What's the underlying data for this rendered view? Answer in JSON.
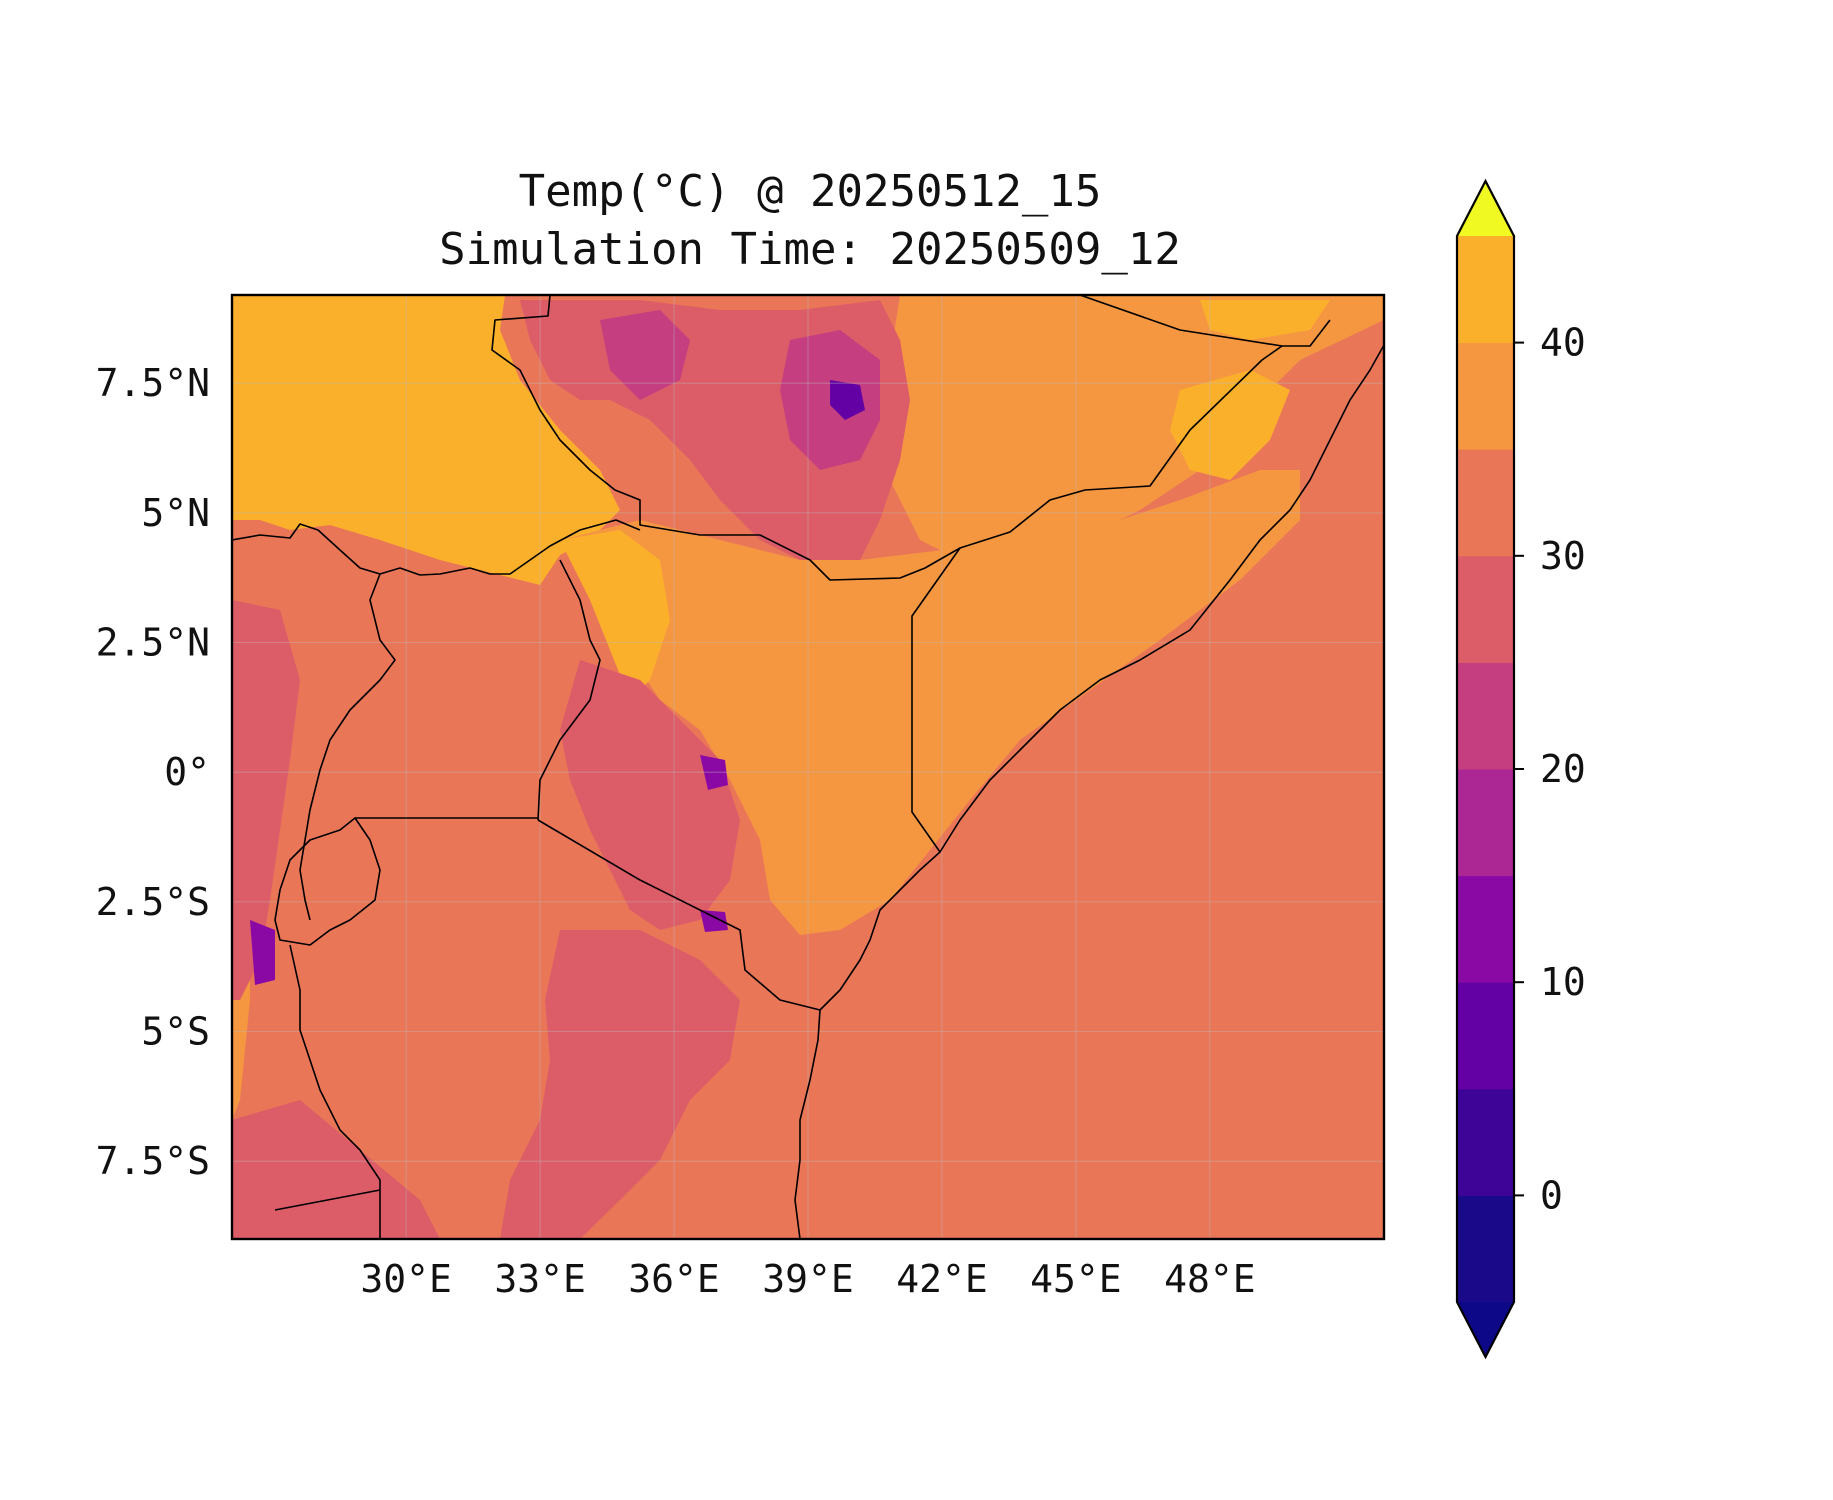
{
  "title": {
    "line1": "Temp(°C) @ 20250512_15",
    "line2": "Simulation Time: 20250509_12"
  },
  "map": {
    "projection": "PlateCarree",
    "lon_range": [
      26.1,
      51.9
    ],
    "lat_range": [
      -9.0,
      9.2
    ],
    "gridlines": true,
    "x_ticks": [
      {
        "value": 30,
        "label": "30°E"
      },
      {
        "value": 33,
        "label": "33°E"
      },
      {
        "value": 36,
        "label": "36°E"
      },
      {
        "value": 39,
        "label": "39°E"
      },
      {
        "value": 42,
        "label": "42°E"
      },
      {
        "value": 45,
        "label": "45°E"
      },
      {
        "value": 48,
        "label": "48°E"
      }
    ],
    "y_ticks": [
      {
        "value": 7.5,
        "label": "7.5°N"
      },
      {
        "value": 5,
        "label": "5°N"
      },
      {
        "value": 2.5,
        "label": "2.5°N"
      },
      {
        "value": 0,
        "label": "0°"
      },
      {
        "value": -2.5,
        "label": "2.5°S"
      },
      {
        "value": -5,
        "label": "5°S"
      },
      {
        "value": -7.5,
        "label": "7.5°S"
      }
    ]
  },
  "colorbar": {
    "colormap": "plasma",
    "levels": [
      -5,
      0,
      5,
      10,
      15,
      20,
      25,
      30,
      35,
      40,
      45
    ],
    "colors": [
      "#1a0a8a",
      "#3d0497",
      "#6401a5",
      "#8a09a5",
      "#ac2694",
      "#c53e80",
      "#dc5c68",
      "#ea7658",
      "#f59641",
      "#fbb02c",
      "#f2e42a"
    ],
    "extend_min_color": "#0d0887",
    "extend_max_color": "#f0f921",
    "tick_labels": [
      {
        "value": 0,
        "label": "0"
      },
      {
        "value": 10,
        "label": "10"
      },
      {
        "value": 20,
        "label": "20"
      },
      {
        "value": 30,
        "label": "30"
      },
      {
        "value": 40,
        "label": "40"
      }
    ]
  },
  "fill_colors": {
    "sea": "#ea7658",
    "hot": "#fbb02c",
    "warm": "#f59641",
    "mild": "#dc5c68",
    "cool": "#c53e80",
    "cold": "#8a09a5",
    "coldest": "#6401a5"
  }
}
